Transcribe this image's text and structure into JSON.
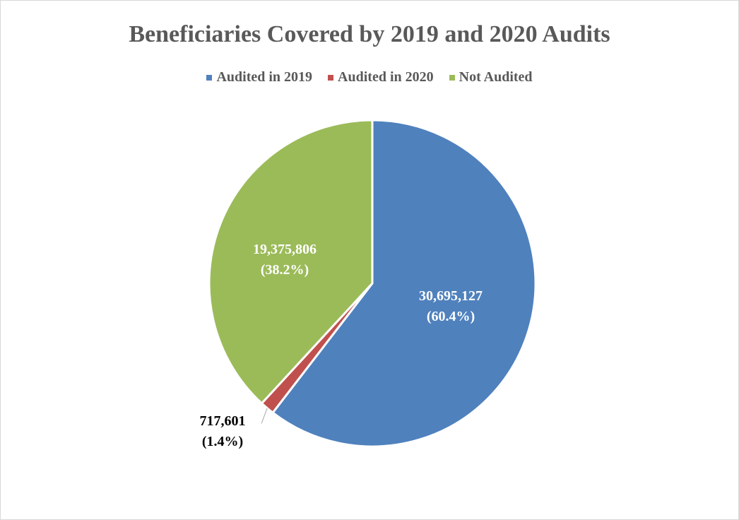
{
  "chart_data": {
    "type": "pie",
    "title": "Beneficiaries Covered by 2019 and 2020 Audits",
    "legend_position": "top",
    "series": [
      {
        "name": "Audited in 2019",
        "value": 30695127,
        "percent": 60.4,
        "value_label": "30,695,127",
        "percent_label": "(60.4%)",
        "color": "#4F81BD",
        "label_color": "#ffffff"
      },
      {
        "name": "Audited in 2020",
        "value": 717601,
        "percent": 1.4,
        "value_label": "717,601",
        "percent_label": "(1.4%)",
        "color": "#C0504D",
        "label_color": "#000000"
      },
      {
        "name": "Not Audited",
        "value": 19375806,
        "percent": 38.2,
        "value_label": "19,375,806",
        "percent_label": "(38.2%)",
        "color": "#9BBB59",
        "label_color": "#ffffff"
      }
    ]
  }
}
